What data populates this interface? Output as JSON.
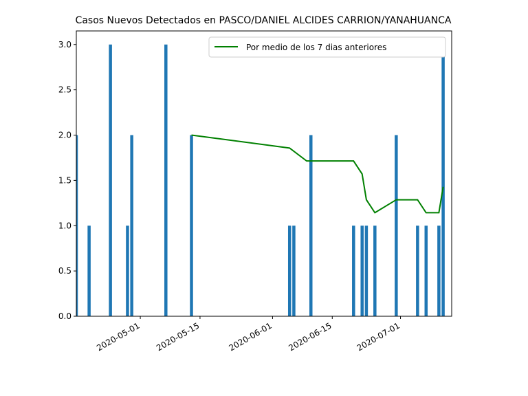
{
  "chart_data": {
    "type": "bar",
    "title": "Casos Nuevos Detectados en PASCO/DANIEL ALCIDES CARRION/YANAHUANCA",
    "xlabel": "",
    "ylabel": "",
    "x_axis": "date",
    "xlim": [
      "2020-04-16",
      "2020-07-13"
    ],
    "ylim": [
      0,
      3.15
    ],
    "x_ticks": [
      "2020-05-01",
      "2020-05-15",
      "2020-06-01",
      "2020-06-15",
      "2020-07-01"
    ],
    "y_ticks": [
      "0.0",
      "0.5",
      "1.0",
      "1.5",
      "2.0",
      "2.5",
      "3.0"
    ],
    "grid": false,
    "legend_position": "top-right",
    "colors": {
      "bars": "#1f77b4",
      "line": "#008000"
    },
    "series": [
      {
        "kind": "bar",
        "dates": [
          "2020-04-16",
          "2020-04-19",
          "2020-04-24",
          "2020-04-28",
          "2020-04-29",
          "2020-05-07",
          "2020-05-13",
          "2020-06-05",
          "2020-06-06",
          "2020-06-10",
          "2020-06-20",
          "2020-06-22",
          "2020-06-23",
          "2020-06-25",
          "2020-06-30",
          "2020-07-05",
          "2020-07-07",
          "2020-07-10",
          "2020-07-11"
        ],
        "values": [
          2,
          1,
          3,
          1,
          2,
          3,
          2,
          1,
          1,
          2,
          1,
          1,
          1,
          1,
          2,
          1,
          1,
          1,
          3
        ]
      },
      {
        "kind": "line",
        "name": "Por medio de los 7 dias anteriores",
        "dates": [
          "2020-05-13",
          "2020-06-05",
          "2020-06-09",
          "2020-06-20",
          "2020-06-22",
          "2020-06-23",
          "2020-06-25",
          "2020-06-30",
          "2020-07-05",
          "2020-07-07",
          "2020-07-10",
          "2020-07-11"
        ],
        "values": [
          2.0,
          1.857,
          1.714,
          1.714,
          1.571,
          1.286,
          1.143,
          1.286,
          1.286,
          1.143,
          1.143,
          1.429
        ]
      }
    ]
  }
}
